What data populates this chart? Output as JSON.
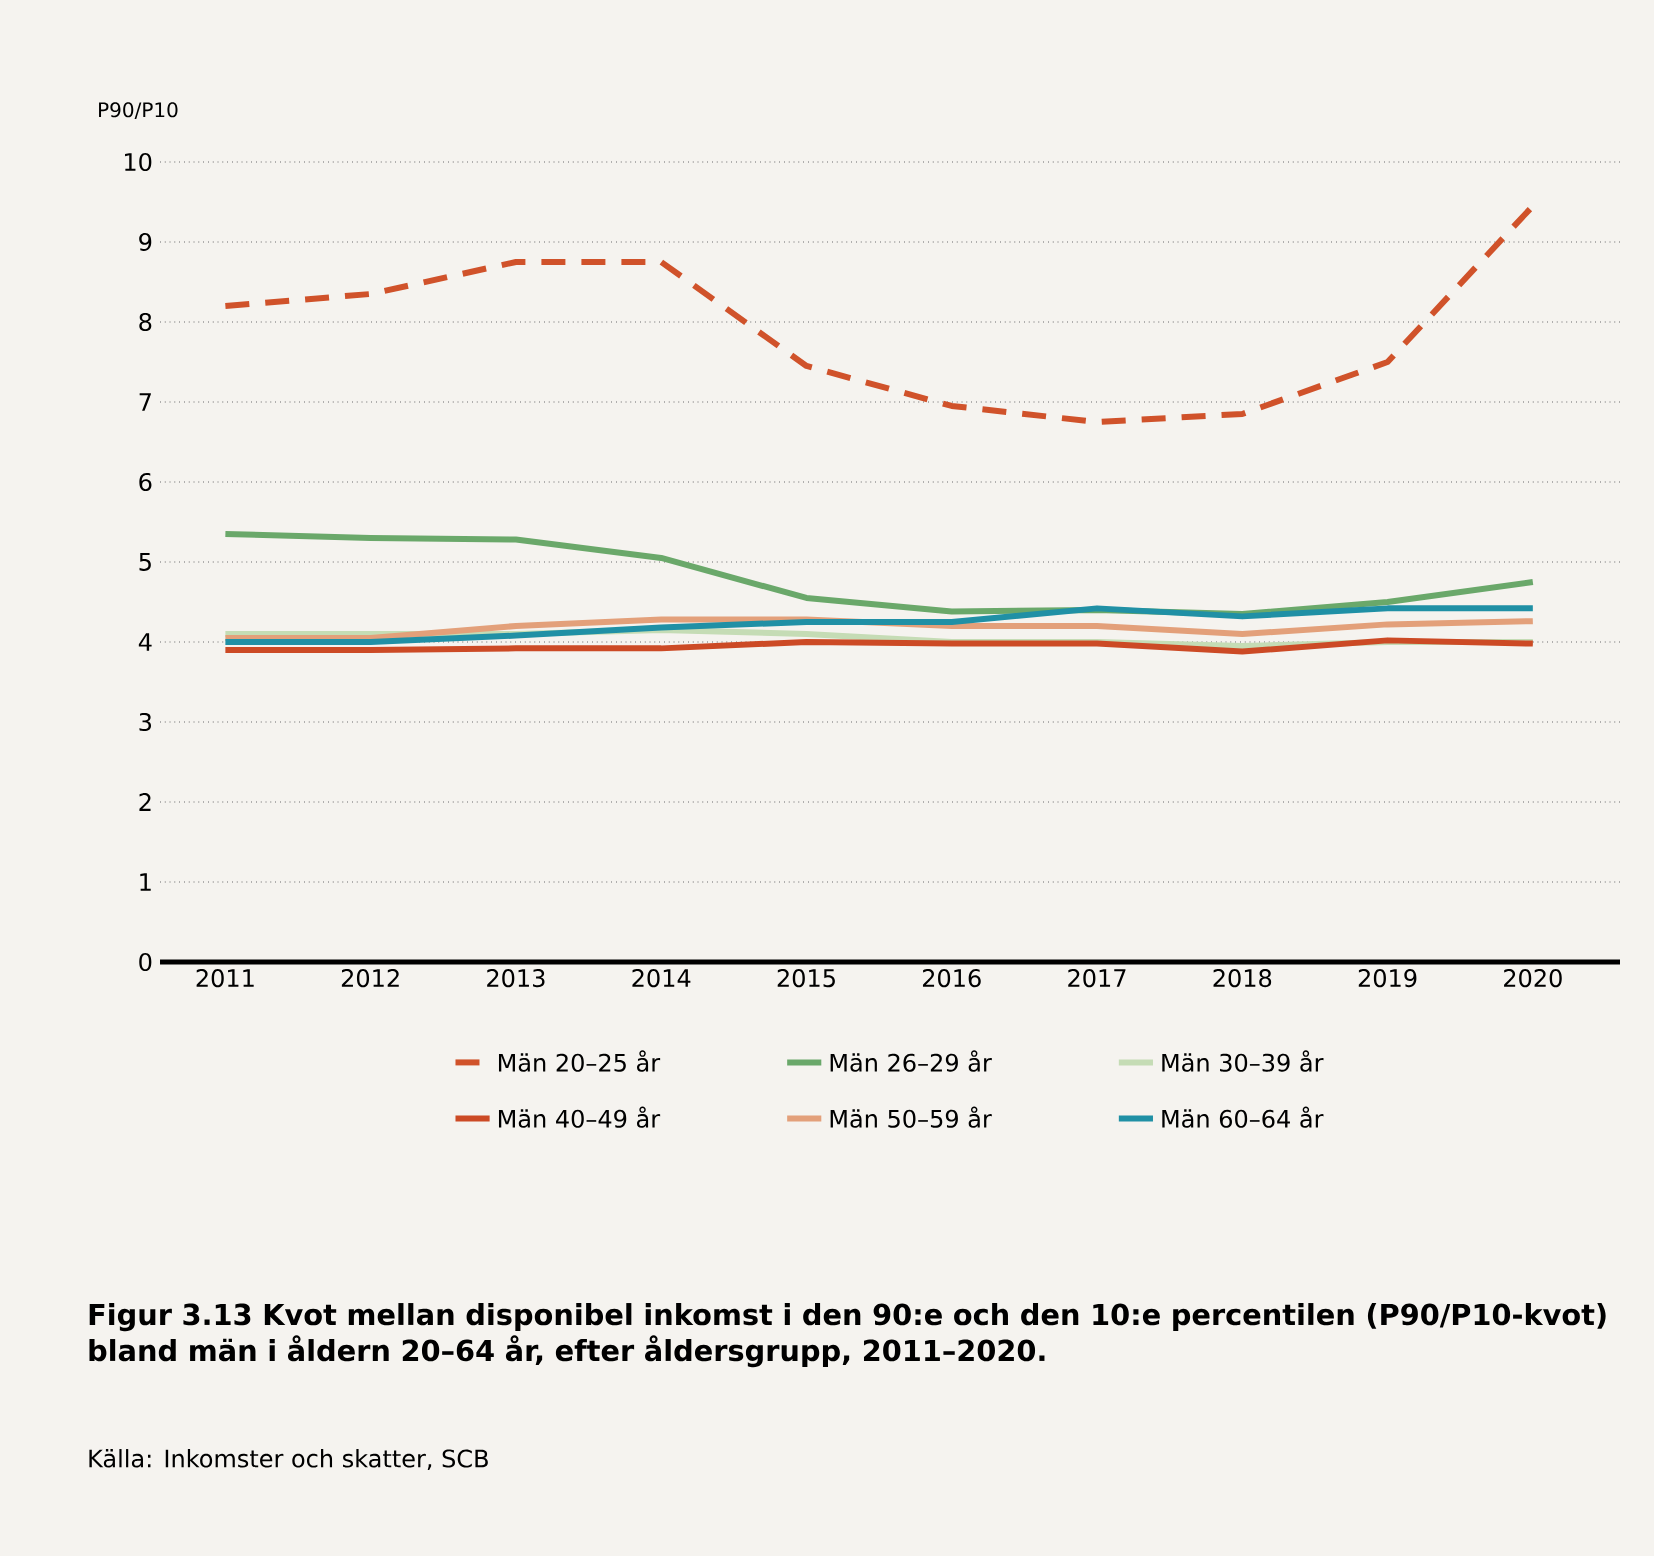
{
  "chart_data": {
    "type": "line",
    "title": "Figur 3.13 Kvot mellan disponibel inkomst i den 90:e och den 10:e percentilen (P90/P10-kvot) bland män i åldern 20–64 år, efter åldersgrupp, 2011–2020.",
    "ylabel": "P90/P10",
    "annotations": [
      "Källa: Inkomster och skatter, SCB"
    ],
    "categories": [
      "2011",
      "2012",
      "2013",
      "2014",
      "2015",
      "2016",
      "2017",
      "2018",
      "2019",
      "2020"
    ],
    "series": [
      {
        "name": "Män 20–25 år",
        "color": "#d0522a",
        "line_style": "dashed",
        "values": [
          8.2,
          8.35,
          8.75,
          8.75,
          7.45,
          6.95,
          6.75,
          6.85,
          7.5,
          9.45
        ]
      },
      {
        "name": "Män 26–29 år",
        "color": "#6aa86a",
        "values": [
          5.35,
          5.3,
          5.28,
          5.05,
          4.55,
          4.38,
          4.4,
          4.35,
          4.5,
          4.75
        ]
      },
      {
        "name": "Män 30–39 år",
        "color": "#c5dcb5",
        "values": [
          4.1,
          4.1,
          4.1,
          4.15,
          4.1,
          4.0,
          4.0,
          3.95,
          4.0,
          4.0
        ]
      },
      {
        "name": "Män 40–49 år",
        "color": "#cc4a25",
        "values": [
          3.9,
          3.9,
          3.92,
          3.92,
          4.0,
          3.98,
          3.98,
          3.88,
          4.02,
          3.98
        ]
      },
      {
        "name": "Män 50–59 år",
        "color": "#e3a07a",
        "values": [
          4.05,
          4.05,
          4.2,
          4.28,
          4.28,
          4.2,
          4.2,
          4.1,
          4.22,
          4.26
        ]
      },
      {
        "name": "Män 60–64 år",
        "color": "#2090a5",
        "values": [
          4.0,
          4.0,
          4.08,
          4.18,
          4.25,
          4.25,
          4.42,
          4.32,
          4.42,
          4.42
        ]
      }
    ],
    "ylim": [
      0,
      10
    ],
    "yticks": [
      0,
      1,
      2,
      3,
      4,
      5,
      6,
      7,
      8,
      9,
      10
    ],
    "grid": "y",
    "legend": "bottom",
    "line_style": "solid"
  }
}
